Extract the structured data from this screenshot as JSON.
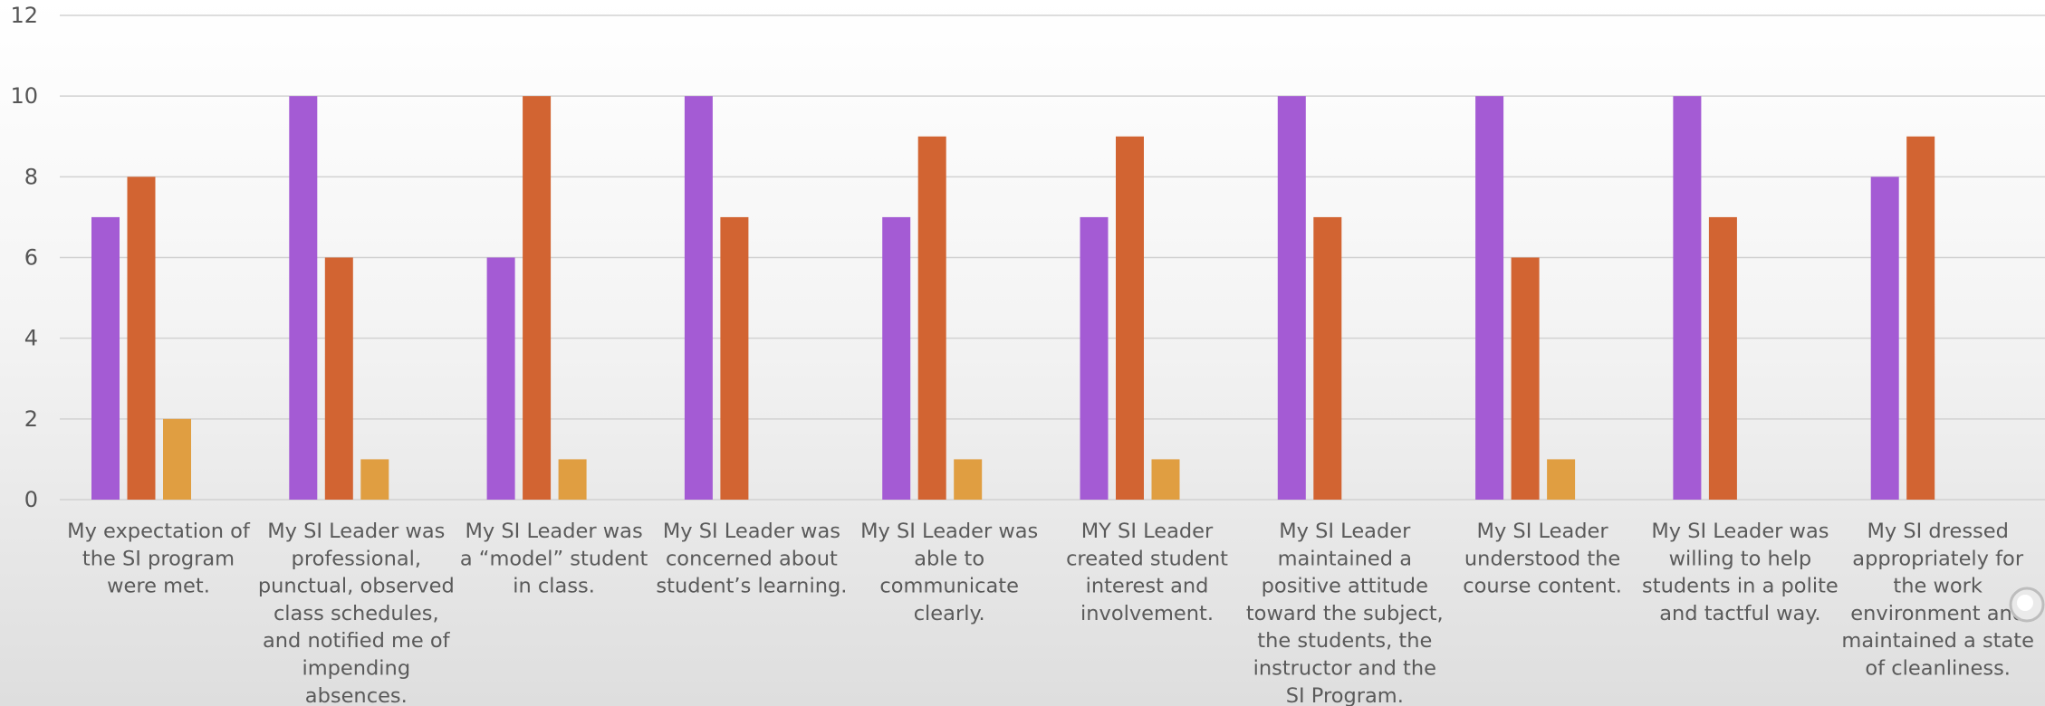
{
  "chart_data": {
    "type": "bar",
    "ylim": [
      0,
      12
    ],
    "yticks": [
      0,
      2,
      4,
      6,
      8,
      10,
      12
    ],
    "grid": true,
    "categories": [
      [
        "My expectation of",
        "the SI program",
        "were met."
      ],
      [
        "My SI Leader was",
        "professional,",
        "punctual, observed",
        "class schedules,",
        "and notified me of",
        "impending",
        "absences."
      ],
      [
        "My SI Leader was",
        "a “model” student",
        "in class."
      ],
      [
        "My SI Leader was",
        "concerned about",
        "student’s learning."
      ],
      [
        "My SI Leader was",
        "able to",
        "communicate",
        "clearly."
      ],
      [
        "MY SI Leader",
        "created student",
        "interest and",
        "involvement."
      ],
      [
        "My SI Leader",
        "maintained a",
        "positive attitude",
        "toward the subject,",
        "the students, the",
        "instructor and the",
        "SI Program."
      ],
      [
        "My SI Leader",
        "understood the",
        "course content."
      ],
      [
        "My SI Leader was",
        "willing to help",
        "students in a polite",
        "and tactful way."
      ],
      [
        "My SI dressed",
        "appropriately for",
        "the work",
        "environment and",
        "maintained a state",
        "of cleanliness."
      ]
    ],
    "series": [
      {
        "color": "#A45BD4",
        "values": [
          7,
          10,
          6,
          10,
          7,
          7,
          10,
          10,
          10,
          8
        ]
      },
      {
        "color": "#D26432",
        "values": [
          8,
          6,
          10,
          7,
          9,
          9,
          7,
          6,
          7,
          9
        ]
      },
      {
        "color": "#E09E41",
        "values": [
          2,
          1,
          1,
          0,
          1,
          1,
          0,
          1,
          0,
          0
        ]
      }
    ],
    "colors": {
      "grid": "#d2d2d2",
      "text": "#5a5a5a",
      "axis_text": "#555555"
    }
  }
}
